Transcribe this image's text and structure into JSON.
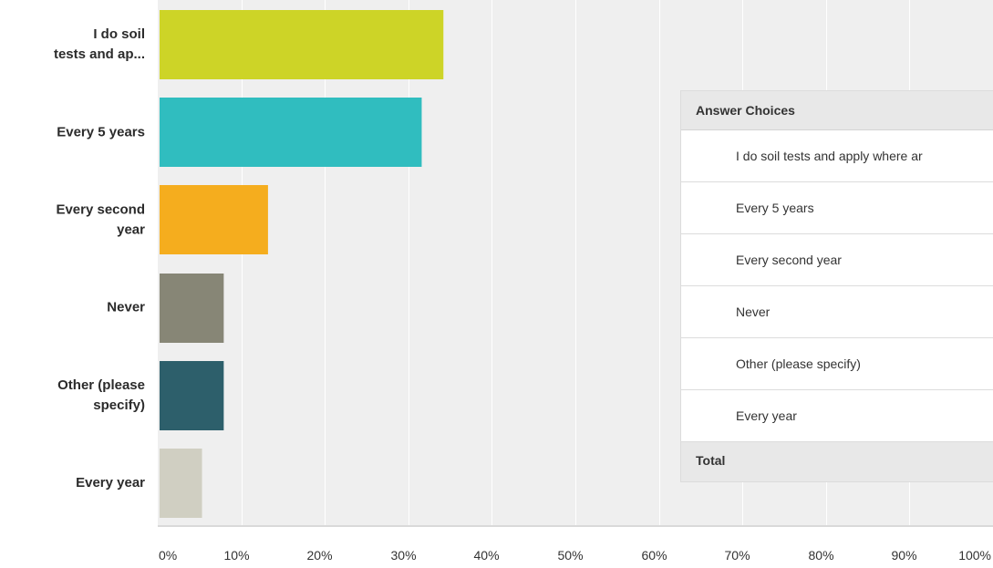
{
  "chart_data": {
    "type": "bar",
    "orientation": "horizontal",
    "categories": [
      [
        "I do soil",
        "tests and ap..."
      ],
      [
        "Every 5 years"
      ],
      [
        "Every second",
        "year"
      ],
      [
        "Never"
      ],
      [
        "Other (please",
        "specify)"
      ],
      [
        "Every year"
      ]
    ],
    "values": [
      34.2,
      31.6,
      13.2,
      7.9,
      7.9,
      5.3
    ],
    "colors": [
      "#cdd427",
      "#30bdbf",
      "#f5ad1e",
      "#878676",
      "#2d5f6b",
      "#d0cfc2"
    ],
    "x_ticks": [
      "0%",
      "10%",
      "20%",
      "30%",
      "40%",
      "50%",
      "60%",
      "70%",
      "80%",
      "90%",
      "100%"
    ],
    "xlim": [
      0,
      100
    ],
    "grid": true
  },
  "table": {
    "header": "Answer Choices",
    "rows": [
      "I do soil tests and apply where ar",
      "Every 5 years",
      "Every second year",
      "Never",
      "Other (please specify)",
      "Every year"
    ],
    "footer": "Total"
  }
}
